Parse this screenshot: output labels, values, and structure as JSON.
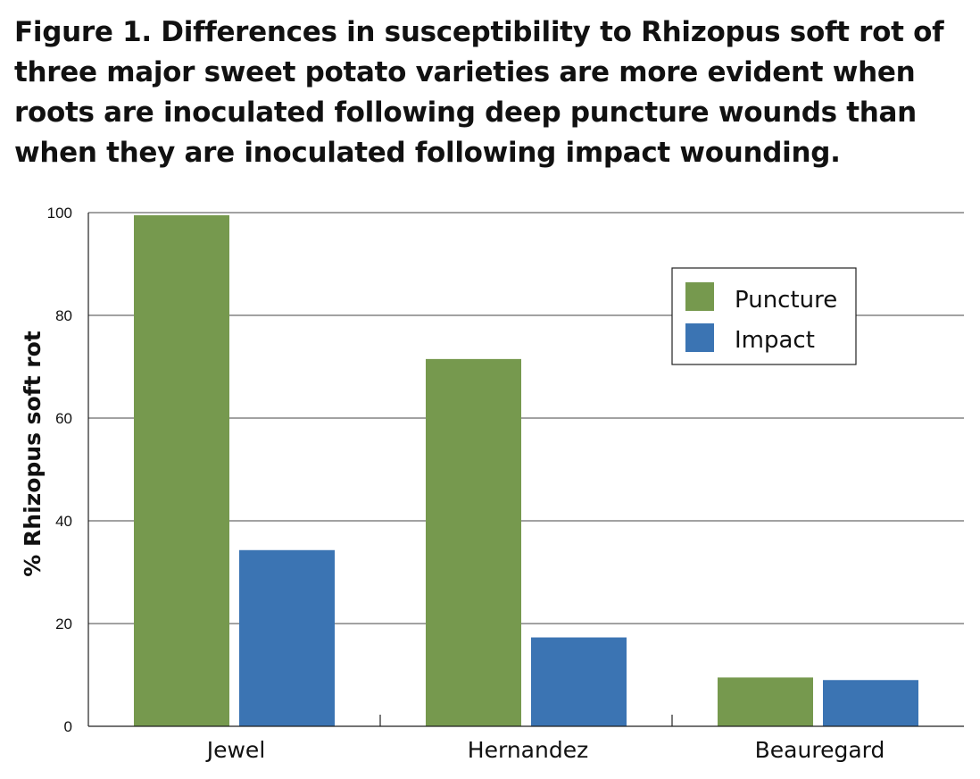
{
  "chart_data": {
    "type": "bar",
    "title": "Figure 1. Differences in susceptibility to Rhizopus soft rot of three major sweet potato varieties are more evident when roots are inoculated following deep puncture wounds than when they are inoculated following impact wounding.",
    "xlabel": "",
    "ylabel": "% Rhizopus soft rot",
    "categories": [
      "Jewel",
      "Hernandez",
      "Beauregard"
    ],
    "series": [
      {
        "name": "Puncture",
        "values": [
          99.5,
          71.5,
          9.5
        ],
        "color": "#76994e"
      },
      {
        "name": "Impact",
        "values": [
          34.3,
          17.3,
          9.0
        ],
        "color": "#3b74b3"
      }
    ],
    "ylim": [
      0,
      100
    ],
    "yticks": [
      0,
      20,
      40,
      60,
      80,
      100
    ],
    "grid": true,
    "legend": "top-right"
  }
}
